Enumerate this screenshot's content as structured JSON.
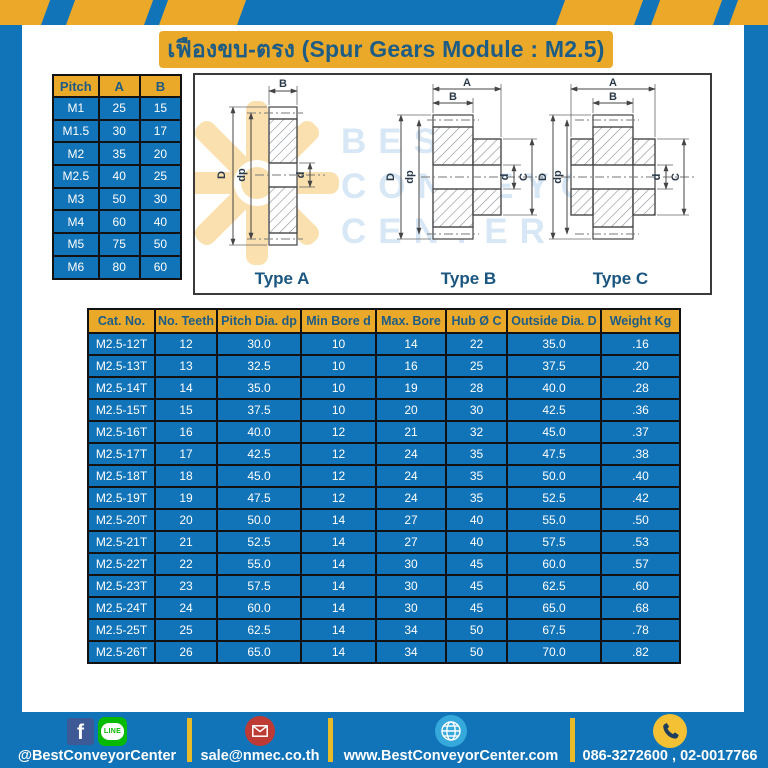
{
  "title": {
    "text": "เฟืองขบ-ตรง (Spur Gears Module : M2.5)"
  },
  "pitch_table": {
    "headers": [
      "Pitch",
      "A",
      "B"
    ],
    "rows": [
      [
        "M1",
        "25",
        "15"
      ],
      [
        "M1.5",
        "30",
        "17"
      ],
      [
        "M2",
        "35",
        "20"
      ],
      [
        "M2.5",
        "40",
        "25"
      ],
      [
        "M3",
        "50",
        "30"
      ],
      [
        "M4",
        "60",
        "40"
      ],
      [
        "M5",
        "75",
        "50"
      ],
      [
        "M6",
        "80",
        "60"
      ]
    ]
  },
  "drawings": {
    "watermark": {
      "lines": [
        "BEST",
        "CONVEYOR",
        "CENTER"
      ]
    },
    "items": [
      {
        "title": "Type A",
        "labels": {
          "B": "B",
          "D": "D",
          "dp": "dp",
          "d": "d"
        }
      },
      {
        "title": "Type B",
        "labels": {
          "A": "A",
          "B": "B",
          "D": "D",
          "dp": "dp",
          "d": "d",
          "C": "C"
        }
      },
      {
        "title": "Type C",
        "labels": {
          "A": "A",
          "B": "B",
          "D": "D",
          "dp": "dp",
          "d": "d",
          "C": "C"
        }
      }
    ]
  },
  "main_table": {
    "headers": [
      "Cat. No.",
      "No. Teeth",
      "Pitch Dia. dp",
      "Min Bore d",
      "Max. Bore",
      "Hub Ø C",
      "Outside Dia. D",
      "Weight Kg"
    ],
    "rows": [
      [
        "M2.5-12T",
        "12",
        "30.0",
        "10",
        "14",
        "22",
        "35.0",
        ".16"
      ],
      [
        "M2.5-13T",
        "13",
        "32.5",
        "10",
        "16",
        "25",
        "37.5",
        ".20"
      ],
      [
        "M2.5-14T",
        "14",
        "35.0",
        "10",
        "19",
        "28",
        "40.0",
        ".28"
      ],
      [
        "M2.5-15T",
        "15",
        "37.5",
        "10",
        "20",
        "30",
        "42.5",
        ".36"
      ],
      [
        "M2.5-16T",
        "16",
        "40.0",
        "12",
        "21",
        "32",
        "45.0",
        ".37"
      ],
      [
        "M2.5-17T",
        "17",
        "42.5",
        "12",
        "24",
        "35",
        "47.5",
        ".38"
      ],
      [
        "M2.5-18T",
        "18",
        "45.0",
        "12",
        "24",
        "35",
        "50.0",
        ".40"
      ],
      [
        "M2.5-19T",
        "19",
        "47.5",
        "12",
        "24",
        "35",
        "52.5",
        ".42"
      ],
      [
        "M2.5-20T",
        "20",
        "50.0",
        "14",
        "27",
        "40",
        "55.0",
        ".50"
      ],
      [
        "M2.5-21T",
        "21",
        "52.5",
        "14",
        "27",
        "40",
        "57.5",
        ".53"
      ],
      [
        "M2.5-22T",
        "22",
        "55.0",
        "14",
        "30",
        "45",
        "60.0",
        ".57"
      ],
      [
        "M2.5-23T",
        "23",
        "57.5",
        "14",
        "30",
        "45",
        "62.5",
        ".60"
      ],
      [
        "M2.5-24T",
        "24",
        "60.0",
        "14",
        "30",
        "45",
        "65.0",
        ".68"
      ],
      [
        "M2.5-25T",
        "25",
        "62.5",
        "14",
        "34",
        "50",
        "67.5",
        ".78"
      ],
      [
        "M2.5-26T",
        "26",
        "65.0",
        "14",
        "34",
        "50",
        "70.0",
        ".82"
      ]
    ]
  },
  "footer": {
    "fb_letter": "f",
    "line_text": "LINE",
    "social": {
      "label": "@BestConveyorCenter"
    },
    "email": {
      "label": "sale@nmec.co.th"
    },
    "website": {
      "label": "www.BestConveyorCenter.com"
    },
    "phone": {
      "label": "086-3272600 , 02-0017766"
    }
  },
  "colors": {
    "blue": "#1173B8",
    "yellow": "#EBA92A",
    "dark_blue_text": "#1D5C85",
    "watermark_blue": "#D7E7F5"
  }
}
